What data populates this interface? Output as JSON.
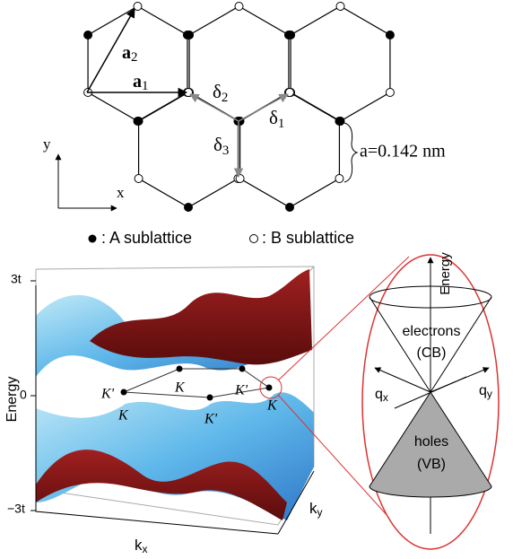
{
  "lattice": {
    "a1": {
      "symbol": "a",
      "subscript": "1"
    },
    "a2": {
      "symbol": "a",
      "subscript": "2"
    },
    "delta1": {
      "symbol": "δ",
      "subscript": "1"
    },
    "delta2": {
      "symbol": "δ",
      "subscript": "2"
    },
    "delta3": {
      "symbol": "δ",
      "subscript": "3"
    },
    "bond_length": "a=0.142 nm",
    "axis_x": "x",
    "axis_y": "y"
  },
  "legend": {
    "a": ": A sublattice",
    "b": ": B sublattice"
  },
  "band_plot": {
    "yticks": [
      "3t",
      "0",
      "−3t"
    ],
    "ylabel": "Energy",
    "xlabel": {
      "symbol": "k",
      "subscript": "x"
    },
    "zlabel": {
      "symbol": "k",
      "subscript": "y"
    },
    "points": [
      "K'",
      "K",
      "K",
      "K'",
      "K'",
      "K"
    ]
  },
  "cone": {
    "ylabel": "Energy",
    "upper": [
      "electrons",
      "(CB)"
    ],
    "lower": [
      "holes",
      "(VB)"
    ],
    "qx": {
      "symbol": "q",
      "subscript": "x"
    },
    "qy": {
      "symbol": "q",
      "subscript": "y"
    }
  }
}
